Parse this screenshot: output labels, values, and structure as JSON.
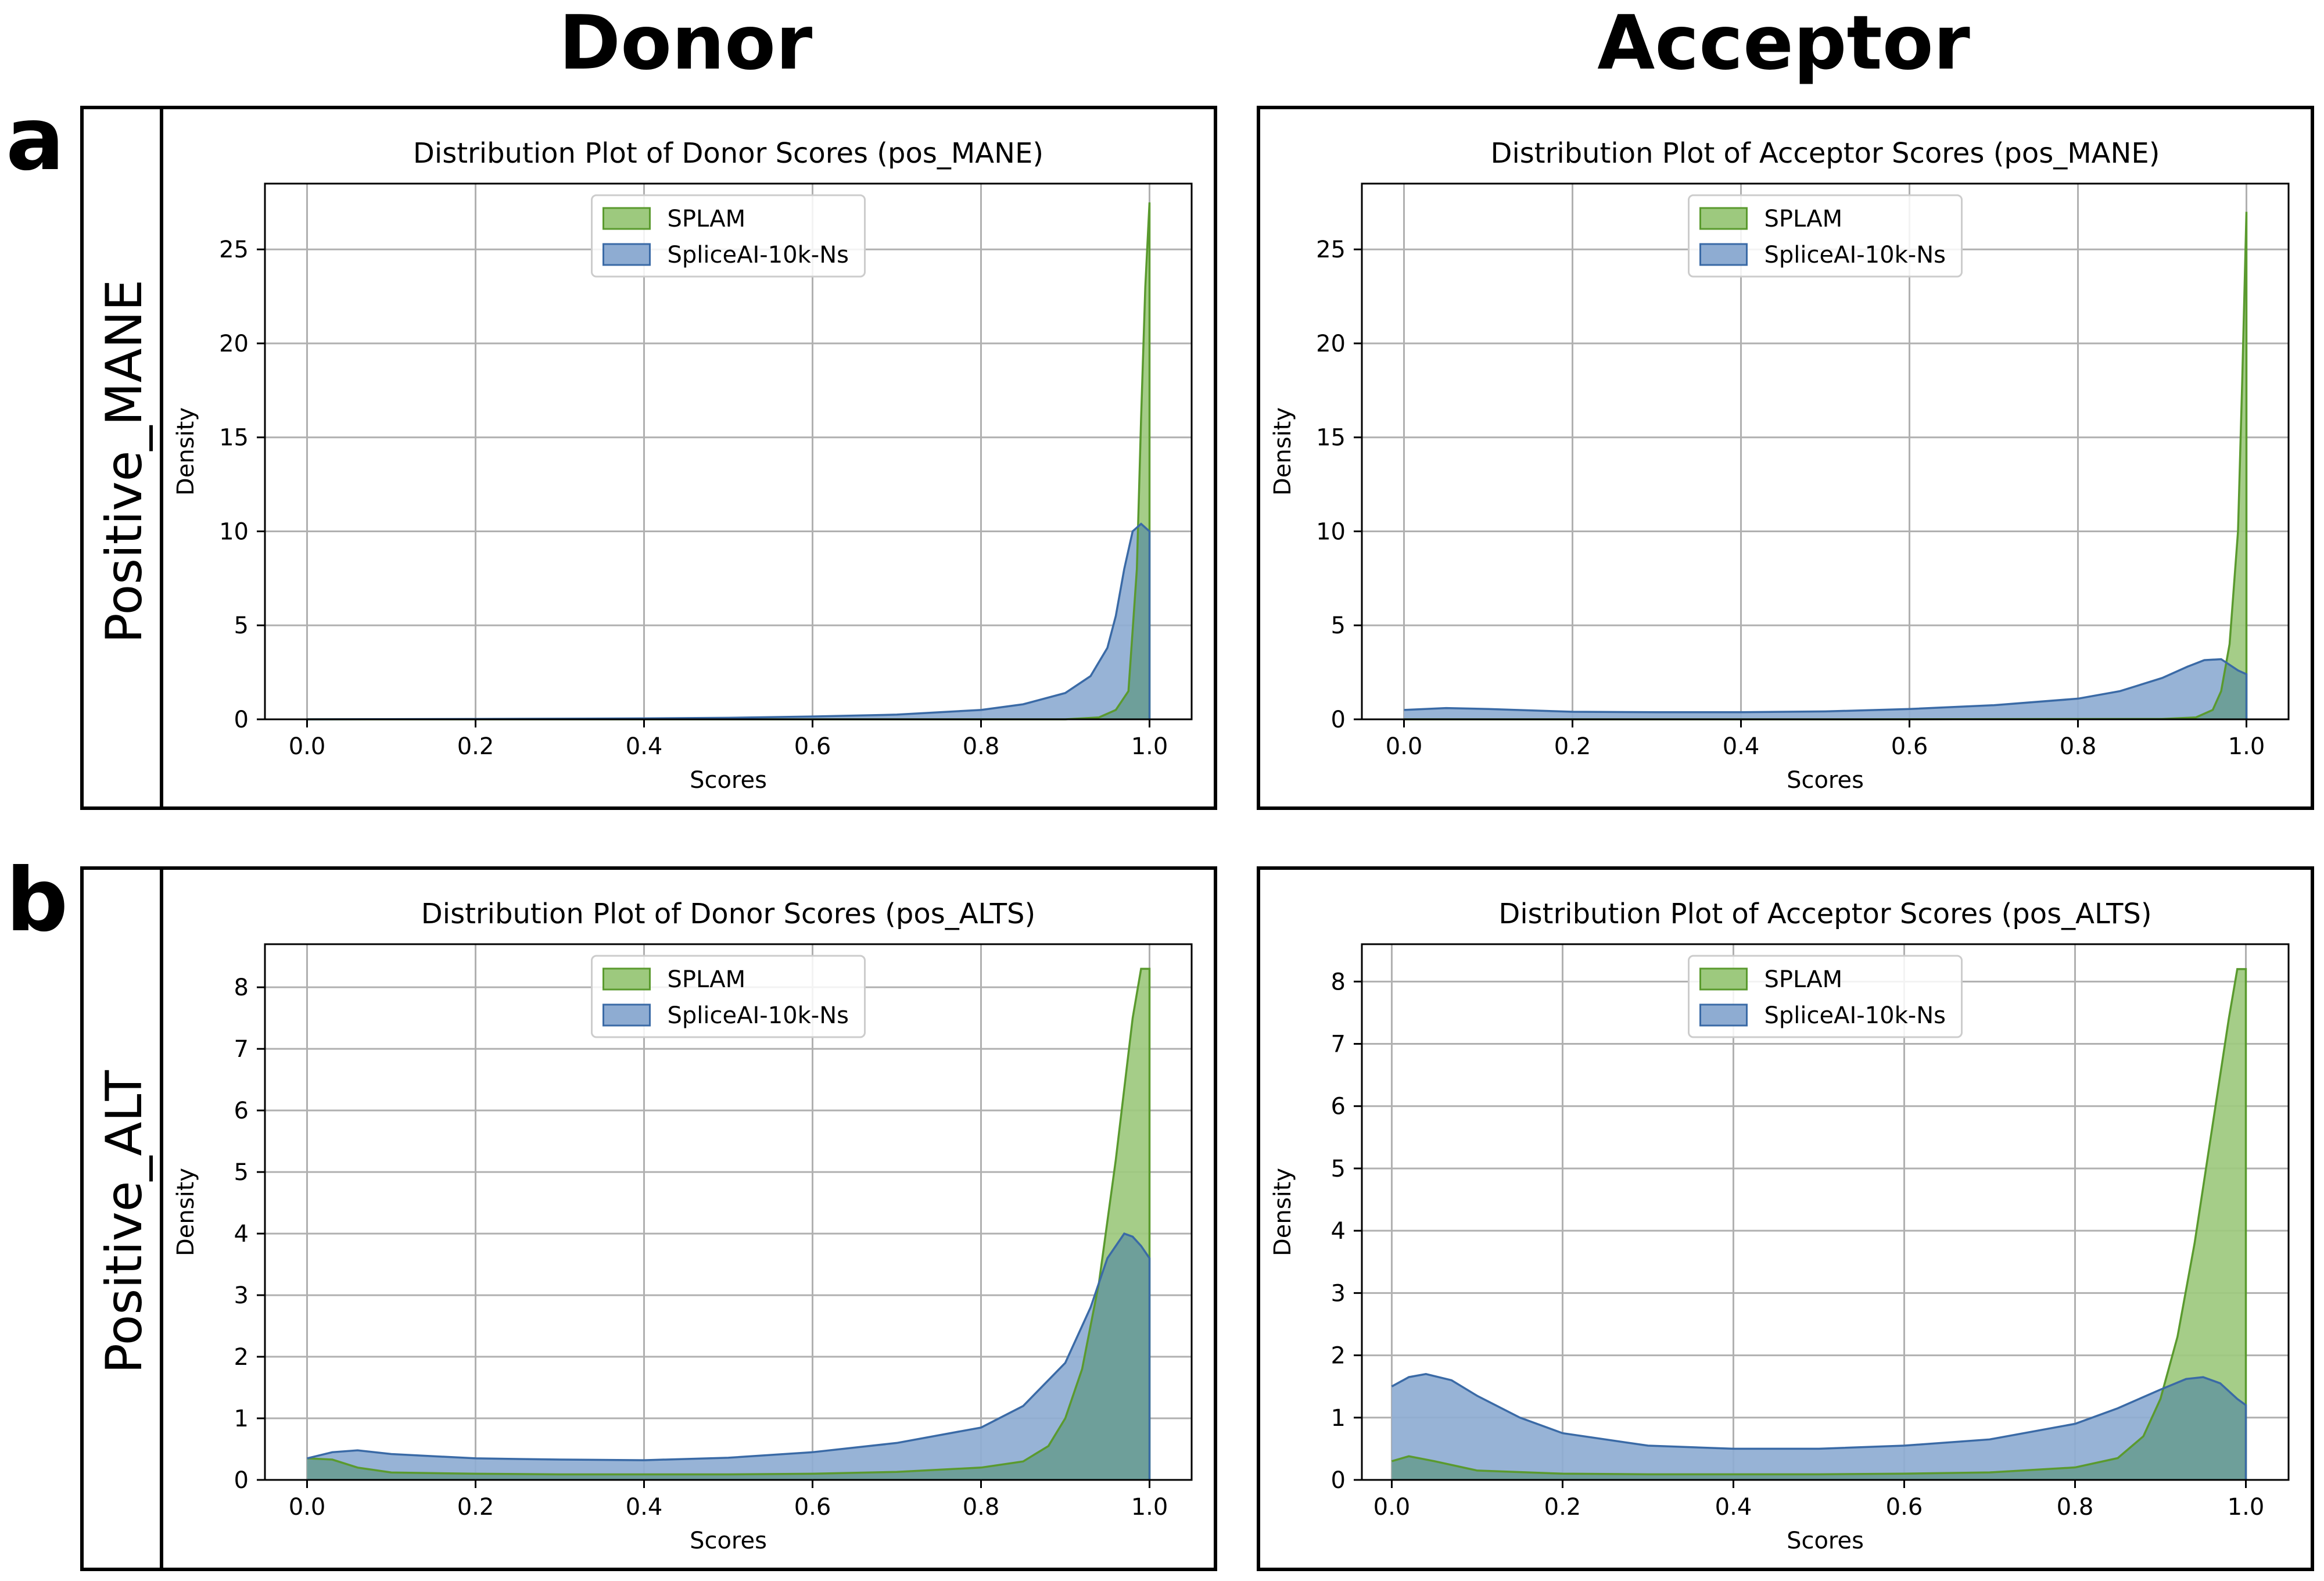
{
  "columns": [
    "Donor",
    "Acceptor"
  ],
  "rows": [
    {
      "letter": "a",
      "label": "Positive_MANE"
    },
    {
      "letter": "b",
      "label": "Positive_ALT"
    }
  ],
  "colors": {
    "splam_fill": "#9dc97e",
    "splam_line": "#5a9a2e",
    "spliceai_fill": "#8eacd2",
    "spliceai_line": "#3a6aa6",
    "overlap_fill": "#6e9f9a"
  },
  "chart_data": [
    {
      "type": "area",
      "title": "Distribution Plot of Donor Scores (pos_MANE)",
      "xlabel": "Scores",
      "ylabel": "Density",
      "xlim": [
        -0.05,
        1.05
      ],
      "ylim": [
        0,
        28.5
      ],
      "xticks": [
        0.0,
        0.2,
        0.4,
        0.6,
        0.8,
        1.0
      ],
      "yticks": [
        0,
        5,
        10,
        15,
        20,
        25
      ],
      "grid": true,
      "legend": "upper-center",
      "series": [
        {
          "name": "SPLAM",
          "x": [
            0,
            0.5,
            0.9,
            0.94,
            0.96,
            0.975,
            0.985,
            0.99,
            0.995,
            1.0
          ],
          "y": [
            0,
            0,
            0,
            0.1,
            0.5,
            1.5,
            8,
            16,
            23,
            27.5
          ]
        },
        {
          "name": "SpliceAI-10k-Ns",
          "x": [
            0,
            0.2,
            0.4,
            0.5,
            0.6,
            0.7,
            0.8,
            0.85,
            0.9,
            0.93,
            0.95,
            0.96,
            0.97,
            0.98,
            0.99,
            1.0
          ],
          "y": [
            0,
            0.02,
            0.05,
            0.08,
            0.15,
            0.25,
            0.5,
            0.8,
            1.4,
            2.3,
            3.8,
            5.5,
            8,
            10,
            10.4,
            10
          ]
        }
      ]
    },
    {
      "type": "area",
      "title": "Distribution Plot of Acceptor Scores (pos_MANE)",
      "xlabel": "Scores",
      "ylabel": "Density",
      "xlim": [
        -0.05,
        1.05
      ],
      "ylim": [
        0,
        28.5
      ],
      "xticks": [
        0.0,
        0.2,
        0.4,
        0.6,
        0.8,
        1.0
      ],
      "yticks": [
        0,
        5,
        10,
        15,
        20,
        25
      ],
      "grid": true,
      "legend": "upper-center",
      "series": [
        {
          "name": "SPLAM",
          "x": [
            0,
            0.5,
            0.9,
            0.94,
            0.96,
            0.97,
            0.98,
            0.99,
            0.995,
            1.0
          ],
          "y": [
            0,
            0,
            0.02,
            0.1,
            0.5,
            1.5,
            4,
            10,
            18,
            27
          ]
        },
        {
          "name": "SpliceAI-10k-Ns",
          "x": [
            0,
            0.05,
            0.1,
            0.2,
            0.3,
            0.4,
            0.5,
            0.6,
            0.7,
            0.8,
            0.85,
            0.9,
            0.93,
            0.95,
            0.97,
            0.99,
            1.0
          ],
          "y": [
            0.5,
            0.6,
            0.55,
            0.4,
            0.38,
            0.38,
            0.42,
            0.55,
            0.75,
            1.1,
            1.5,
            2.2,
            2.8,
            3.15,
            3.2,
            2.6,
            2.4
          ]
        }
      ]
    },
    {
      "type": "area",
      "title": "Distribution Plot of Donor Scores (pos_ALTS)",
      "xlabel": "Scores",
      "ylabel": "Density",
      "xlim": [
        -0.05,
        1.05
      ],
      "ylim": [
        0,
        8.7
      ],
      "xticks": [
        0.0,
        0.2,
        0.4,
        0.6,
        0.8,
        1.0
      ],
      "yticks": [
        0,
        1,
        2,
        3,
        4,
        5,
        6,
        7,
        8
      ],
      "grid": true,
      "legend": "upper-center",
      "series": [
        {
          "name": "SPLAM",
          "x": [
            0,
            0.03,
            0.06,
            0.1,
            0.2,
            0.3,
            0.4,
            0.5,
            0.6,
            0.7,
            0.8,
            0.85,
            0.88,
            0.9,
            0.92,
            0.94,
            0.96,
            0.98,
            0.99,
            1.0
          ],
          "y": [
            0.35,
            0.33,
            0.2,
            0.12,
            0.1,
            0.09,
            0.09,
            0.09,
            0.1,
            0.13,
            0.2,
            0.3,
            0.55,
            1.0,
            1.8,
            3.2,
            5.2,
            7.5,
            8.3,
            8.3
          ]
        },
        {
          "name": "SpliceAI-10k-Ns",
          "x": [
            0,
            0.03,
            0.06,
            0.1,
            0.2,
            0.3,
            0.4,
            0.5,
            0.6,
            0.7,
            0.8,
            0.85,
            0.9,
            0.93,
            0.95,
            0.97,
            0.98,
            0.99,
            1.0
          ],
          "y": [
            0.35,
            0.45,
            0.48,
            0.42,
            0.35,
            0.33,
            0.32,
            0.36,
            0.45,
            0.6,
            0.85,
            1.2,
            1.9,
            2.8,
            3.6,
            4.0,
            3.95,
            3.8,
            3.6
          ]
        }
      ]
    },
    {
      "type": "area",
      "title": "Distribution Plot of Acceptor Scores (pos_ALTS)",
      "xlabel": "Scores",
      "ylabel": "Density",
      "xlim": [
        -0.035,
        1.05
      ],
      "ylim": [
        0,
        8.6
      ],
      "xticks": [
        0.0,
        0.2,
        0.4,
        0.6,
        0.8,
        1.0
      ],
      "yticks": [
        0,
        1,
        2,
        3,
        4,
        5,
        6,
        7,
        8
      ],
      "grid": true,
      "legend": "upper-center",
      "series": [
        {
          "name": "SPLAM",
          "x": [
            0,
            0.02,
            0.05,
            0.1,
            0.2,
            0.3,
            0.4,
            0.5,
            0.6,
            0.7,
            0.8,
            0.85,
            0.88,
            0.9,
            0.92,
            0.94,
            0.96,
            0.98,
            0.99,
            1.0
          ],
          "y": [
            0.3,
            0.38,
            0.3,
            0.15,
            0.1,
            0.09,
            0.09,
            0.09,
            0.1,
            0.12,
            0.2,
            0.35,
            0.7,
            1.3,
            2.3,
            3.8,
            5.6,
            7.4,
            8.2,
            8.2
          ]
        },
        {
          "name": "SpliceAI-10k-Ns",
          "x": [
            0,
            0.02,
            0.04,
            0.07,
            0.1,
            0.15,
            0.2,
            0.3,
            0.4,
            0.5,
            0.6,
            0.7,
            0.8,
            0.85,
            0.9,
            0.93,
            0.95,
            0.97,
            0.99,
            1.0
          ],
          "y": [
            1.5,
            1.65,
            1.7,
            1.6,
            1.35,
            1.0,
            0.75,
            0.55,
            0.5,
            0.5,
            0.55,
            0.65,
            0.9,
            1.15,
            1.45,
            1.62,
            1.65,
            1.55,
            1.3,
            1.2
          ]
        }
      ]
    }
  ]
}
